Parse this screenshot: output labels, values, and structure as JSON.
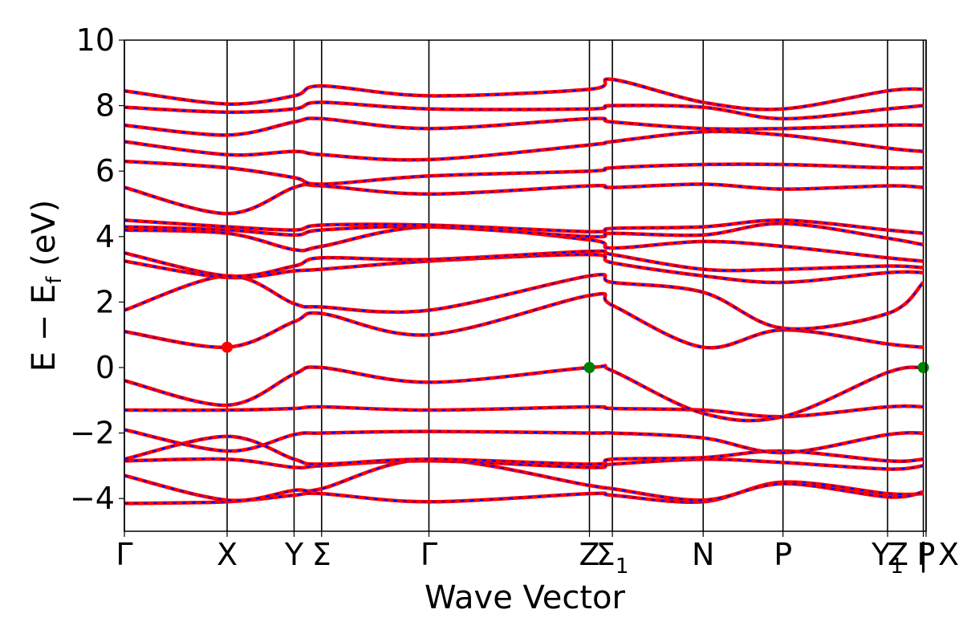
{
  "chart_data": {
    "type": "line",
    "title": "",
    "xlabel": "Wave Vector",
    "ylabel_main": "E − E",
    "ylabel_sub": "f",
    "ylabel_unit": " (eV)",
    "ylim": [
      -5,
      10
    ],
    "yticks": [
      -4,
      -2,
      0,
      2,
      4,
      6,
      8,
      10
    ],
    "ytick_labels": [
      "−4",
      "−2",
      "0",
      "2",
      "4",
      "6",
      "8",
      "10"
    ],
    "xlim": [
      0,
      8.74
    ],
    "kpoints": [
      {
        "label": "Γ",
        "sub": "",
        "x": 0.0
      },
      {
        "label": "X",
        "sub": "",
        "x": 1.12
      },
      {
        "label": "Y",
        "sub": "",
        "x": 1.85
      },
      {
        "label": "Σ",
        "sub": "",
        "x": 2.15
      },
      {
        "label": "Γ",
        "sub": "",
        "x": 3.32
      },
      {
        "label": "Z",
        "sub": "",
        "x": 5.07
      },
      {
        "label": "Σ",
        "sub": "1",
        "x": 5.32
      },
      {
        "label": "N",
        "sub": "",
        "x": 6.31
      },
      {
        "label": "P",
        "sub": "",
        "x": 7.18
      },
      {
        "label": "Y",
        "sub": "1",
        "x": 8.32
      },
      {
        "label": "Z | X",
        "sub": "",
        "x": 8.71
      },
      {
        "label": "P",
        "sub": "",
        "x": 8.74
      }
    ],
    "series_styles": [
      {
        "color": "#ff0000",
        "style": "solid"
      },
      {
        "color": "#0000ff",
        "style": "dashed"
      }
    ],
    "bands": [
      [
        [
          0.0,
          -4.15
        ],
        [
          1.12,
          -4.1
        ],
        [
          1.85,
          -3.9
        ],
        [
          2.15,
          -3.85
        ],
        [
          3.32,
          -4.1
        ],
        [
          5.07,
          -3.85
        ],
        [
          5.32,
          -3.9
        ],
        [
          6.31,
          -4.1
        ],
        [
          7.18,
          -3.5
        ],
        [
          8.32,
          -3.85
        ],
        [
          8.71,
          -3.85
        ]
      ],
      [
        [
          0.0,
          -3.3
        ],
        [
          1.12,
          -4.05
        ],
        [
          1.85,
          -3.75
        ],
        [
          2.15,
          -3.7
        ],
        [
          3.32,
          -2.8
        ],
        [
          5.07,
          -3.6
        ],
        [
          5.32,
          -3.7
        ],
        [
          6.31,
          -4.05
        ],
        [
          7.18,
          -3.55
        ],
        [
          8.32,
          -3.95
        ],
        [
          8.71,
          -3.8
        ]
      ],
      [
        [
          0.0,
          -2.85
        ],
        [
          1.12,
          -2.8
        ],
        [
          1.85,
          -3.05
        ],
        [
          2.15,
          -3.0
        ],
        [
          3.32,
          -2.85
        ],
        [
          5.07,
          -3.05
        ],
        [
          5.32,
          -2.95
        ],
        [
          6.31,
          -2.8
        ],
        [
          7.18,
          -2.9
        ],
        [
          8.32,
          -3.1
        ],
        [
          8.71,
          -3.0
        ]
      ],
      [
        [
          0.0,
          -2.8
        ],
        [
          1.12,
          -2.1
        ],
        [
          1.85,
          -2.8
        ],
        [
          2.15,
          -2.95
        ],
        [
          3.32,
          -2.8
        ],
        [
          5.07,
          -2.95
        ],
        [
          5.32,
          -2.8
        ],
        [
          6.31,
          -2.75
        ],
        [
          7.18,
          -2.55
        ],
        [
          8.32,
          -2.85
        ],
        [
          8.71,
          -2.8
        ]
      ],
      [
        [
          0.0,
          -1.9
        ],
        [
          1.12,
          -2.55
        ],
        [
          1.85,
          -2.05
        ],
        [
          2.15,
          -2.0
        ],
        [
          3.32,
          -1.95
        ],
        [
          5.07,
          -2.0
        ],
        [
          5.32,
          -2.0
        ],
        [
          6.31,
          -2.15
        ],
        [
          7.18,
          -2.6
        ],
        [
          8.32,
          -2.05
        ],
        [
          8.71,
          -2.0
        ]
      ],
      [
        [
          0.0,
          -1.3
        ],
        [
          1.12,
          -1.3
        ],
        [
          1.85,
          -1.25
        ],
        [
          2.15,
          -1.2
        ],
        [
          3.32,
          -1.3
        ],
        [
          5.07,
          -1.2
        ],
        [
          5.32,
          -1.25
        ],
        [
          6.31,
          -1.3
        ],
        [
          7.18,
          -1.5
        ],
        [
          8.32,
          -1.2
        ],
        [
          8.71,
          -1.2
        ]
      ],
      [
        [
          0.0,
          -0.4
        ],
        [
          1.12,
          -1.15
        ],
        [
          1.85,
          -0.2
        ],
        [
          2.15,
          0.0
        ],
        [
          3.32,
          -0.45
        ],
        [
          5.07,
          0.0
        ],
        [
          5.32,
          -0.1
        ],
        [
          6.31,
          -1.4
        ],
        [
          7.18,
          -1.5
        ],
        [
          8.32,
          -0.15
        ],
        [
          8.71,
          0.0
        ]
      ],
      [
        [
          0.0,
          1.1
        ],
        [
          1.12,
          0.62
        ],
        [
          1.85,
          1.4
        ],
        [
          2.15,
          1.65
        ],
        [
          3.32,
          1.0
        ],
        [
          5.07,
          2.2
        ],
        [
          5.32,
          1.9
        ],
        [
          6.31,
          0.62
        ],
        [
          7.18,
          1.15
        ],
        [
          8.32,
          0.72
        ],
        [
          8.71,
          0.62
        ]
      ],
      [
        [
          0.0,
          1.75
        ],
        [
          1.12,
          2.8
        ],
        [
          1.85,
          1.95
        ],
        [
          2.15,
          1.85
        ],
        [
          3.32,
          1.75
        ],
        [
          5.07,
          2.8
        ],
        [
          5.32,
          2.6
        ],
        [
          6.31,
          2.3
        ],
        [
          7.18,
          1.2
        ],
        [
          8.32,
          1.65
        ],
        [
          8.71,
          2.6
        ]
      ],
      [
        [
          0.0,
          3.25
        ],
        [
          1.12,
          2.75
        ],
        [
          1.85,
          2.95
        ],
        [
          2.15,
          3.0
        ],
        [
          3.32,
          3.25
        ],
        [
          5.07,
          3.45
        ],
        [
          5.32,
          3.2
        ],
        [
          6.31,
          2.8
        ],
        [
          7.18,
          2.6
        ],
        [
          8.32,
          2.9
        ],
        [
          8.71,
          2.9
        ]
      ],
      [
        [
          0.0,
          3.5
        ],
        [
          1.12,
          2.8
        ],
        [
          1.85,
          3.1
        ],
        [
          2.15,
          3.35
        ],
        [
          3.32,
          3.3
        ],
        [
          5.07,
          3.55
        ],
        [
          5.32,
          3.45
        ],
        [
          6.31,
          3.0
        ],
        [
          7.18,
          3.0
        ],
        [
          8.32,
          3.1
        ],
        [
          8.71,
          3.05
        ]
      ],
      [
        [
          0.0,
          4.2
        ],
        [
          1.12,
          4.1
        ],
        [
          1.85,
          3.6
        ],
        [
          2.15,
          3.7
        ],
        [
          3.32,
          4.3
        ],
        [
          5.07,
          3.9
        ],
        [
          5.32,
          3.65
        ],
        [
          6.31,
          3.85
        ],
        [
          7.18,
          3.7
        ],
        [
          8.32,
          3.35
        ],
        [
          8.71,
          3.25
        ]
      ],
      [
        [
          0.0,
          4.3
        ],
        [
          1.12,
          4.2
        ],
        [
          1.85,
          4.05
        ],
        [
          2.15,
          4.2
        ],
        [
          3.32,
          4.3
        ],
        [
          5.07,
          4.0
        ],
        [
          5.32,
          4.1
        ],
        [
          6.31,
          4.05
        ],
        [
          7.18,
          4.4
        ],
        [
          8.32,
          3.95
        ],
        [
          8.71,
          3.75
        ]
      ],
      [
        [
          0.0,
          4.5
        ],
        [
          1.12,
          4.3
        ],
        [
          1.85,
          4.2
        ],
        [
          2.15,
          4.35
        ],
        [
          3.32,
          4.35
        ],
        [
          5.07,
          4.15
        ],
        [
          5.32,
          4.25
        ],
        [
          6.31,
          4.3
        ],
        [
          7.18,
          4.5
        ],
        [
          8.32,
          4.2
        ],
        [
          8.71,
          4.1
        ]
      ],
      [
        [
          0.0,
          5.5
        ],
        [
          1.12,
          4.7
        ],
        [
          1.85,
          5.5
        ],
        [
          2.15,
          5.55
        ],
        [
          3.32,
          5.3
        ],
        [
          5.07,
          5.55
        ],
        [
          5.32,
          5.5
        ],
        [
          6.31,
          5.6
        ],
        [
          7.18,
          5.45
        ],
        [
          8.32,
          5.55
        ],
        [
          8.71,
          5.5
        ]
      ],
      [
        [
          0.0,
          6.3
        ],
        [
          1.12,
          6.1
        ],
        [
          1.85,
          5.8
        ],
        [
          2.15,
          5.6
        ],
        [
          3.32,
          5.85
        ],
        [
          5.07,
          6.0
        ],
        [
          5.32,
          6.1
        ],
        [
          6.31,
          6.2
        ],
        [
          7.18,
          6.2
        ],
        [
          8.32,
          6.1
        ],
        [
          8.71,
          6.1
        ]
      ],
      [
        [
          0.0,
          6.9
        ],
        [
          1.12,
          6.5
        ],
        [
          1.85,
          6.6
        ],
        [
          2.15,
          6.5
        ],
        [
          3.32,
          6.35
        ],
        [
          5.07,
          6.8
        ],
        [
          5.32,
          6.9
        ],
        [
          6.31,
          7.2
        ],
        [
          7.18,
          7.1
        ],
        [
          8.32,
          6.7
        ],
        [
          8.71,
          6.6
        ]
      ],
      [
        [
          0.0,
          7.4
        ],
        [
          1.12,
          7.1
        ],
        [
          1.85,
          7.5
        ],
        [
          2.15,
          7.6
        ],
        [
          3.32,
          7.3
        ],
        [
          5.07,
          7.6
        ],
        [
          5.32,
          7.5
        ],
        [
          6.31,
          7.3
        ],
        [
          7.18,
          7.3
        ],
        [
          8.32,
          7.4
        ],
        [
          8.71,
          7.4
        ]
      ],
      [
        [
          0.0,
          7.95
        ],
        [
          1.12,
          7.8
        ],
        [
          1.85,
          7.9
        ],
        [
          2.15,
          8.1
        ],
        [
          3.32,
          7.9
        ],
        [
          5.07,
          7.9
        ],
        [
          5.32,
          8.0
        ],
        [
          6.31,
          7.95
        ],
        [
          7.18,
          7.6
        ],
        [
          8.32,
          7.9
        ],
        [
          8.71,
          8.0
        ]
      ],
      [
        [
          0.0,
          8.45
        ],
        [
          1.12,
          8.05
        ],
        [
          1.85,
          8.3
        ],
        [
          2.15,
          8.6
        ],
        [
          3.32,
          8.3
        ],
        [
          5.07,
          8.5
        ],
        [
          5.32,
          8.8
        ],
        [
          6.31,
          8.1
        ],
        [
          7.18,
          7.9
        ],
        [
          8.32,
          8.45
        ],
        [
          8.71,
          8.5
        ]
      ]
    ],
    "markers": [
      {
        "x": 1.12,
        "y": 0.62,
        "color": "#ff0000",
        "role": "conduction band minimum"
      },
      {
        "x": 5.07,
        "y": 0.0,
        "color": "#008000",
        "role": "valence band maximum"
      },
      {
        "x": 8.71,
        "y": 0.0,
        "color": "#008000",
        "role": "valence band maximum"
      }
    ],
    "grid": false,
    "legend": "none"
  }
}
